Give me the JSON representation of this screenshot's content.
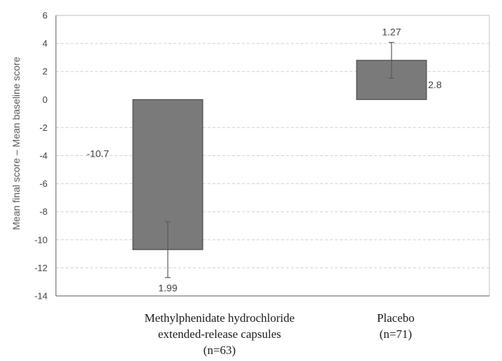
{
  "chart_data": {
    "type": "bar",
    "title": "",
    "xlabel": "",
    "ylabel": "Mean final score – Mean baseline score",
    "ylim": [
      -14,
      6
    ],
    "yticks": [
      6,
      4,
      2,
      0,
      -2,
      -4,
      -6,
      -8,
      -10,
      -12,
      -14
    ],
    "grid": true,
    "categories": [
      {
        "lines": [
          "Methylphenidate hydrochloride",
          "extended-release capsules",
          "(n=63)"
        ],
        "value": -10.7,
        "value_label": "-10.7",
        "error": 1.99,
        "error_label": "1.99"
      },
      {
        "lines": [
          "Placebo",
          "(n=71)"
        ],
        "value": 2.8,
        "value_label": "2.8",
        "error": 1.27,
        "error_label": "1.27"
      }
    ],
    "colors": {
      "bar_fill": "#7a7a7a",
      "bar_stroke": "#3a3a3a",
      "grid": "#d0d0d0",
      "axis": "#595959"
    }
  }
}
